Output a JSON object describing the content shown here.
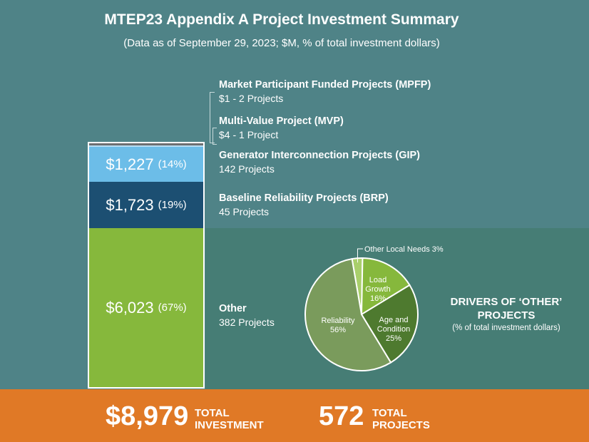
{
  "title": "MTEP23 Appendix A Project Investment Summary",
  "subtitle": "(Data as of September 29, 2023; $M, % of total investment dollars)",
  "chart_data": [
    {
      "type": "bar",
      "layout": "stacked",
      "unit": "$M",
      "segments": [
        {
          "key": "mpfp",
          "name": "Market Participant Funded Projects (MPFP)",
          "value_label": "$1",
          "value": 1,
          "projects": "$1 - 2 Projects",
          "color": "#b6ddf2"
        },
        {
          "key": "mvp",
          "name": "Multi-Value Project (MVP)",
          "value_label": "$4",
          "value": 4,
          "projects": "$4 - 1 Project",
          "color": "#6d6f71"
        },
        {
          "key": "gip",
          "name": "Generator Interconnection Projects (GIP)",
          "value_label": "$1,227",
          "value": 1227,
          "pct": "(14%)",
          "projects": "142 Projects",
          "color": "#6cbde8"
        },
        {
          "key": "brp",
          "name": "Baseline Reliability Projects (BRP)",
          "value_label": "$1,723",
          "value": 1723,
          "pct": "(19%)",
          "projects": "45 Projects",
          "color": "#1c4f72"
        },
        {
          "key": "other",
          "name": "Other",
          "value_label": "$6,023",
          "value": 6023,
          "pct": "(67%)",
          "projects": "382 Projects",
          "color": "#86b83c"
        }
      ]
    },
    {
      "type": "pie",
      "title": "DRIVERS OF ‘OTHER’ PROJECTS",
      "subtitle": "(% of total investment dollars)",
      "slices": [
        {
          "label": "Other Local Needs 3%",
          "lines": [
            "Other Local Needs 3%"
          ],
          "value": 3,
          "color": "#a9cf6b"
        },
        {
          "label": "Load Growth 16%",
          "lines": [
            "Load",
            "Growth",
            "16%"
          ],
          "value": 16,
          "color": "#86b83c"
        },
        {
          "label": "Age and Condition 25%",
          "lines": [
            "Age and",
            "Condition",
            "25%"
          ],
          "value": 25,
          "color": "#4e7a2f"
        },
        {
          "label": "Reliability 56%",
          "lines": [
            "Reliability",
            "56%"
          ],
          "value": 56,
          "color": "#7a9b5c"
        }
      ]
    }
  ],
  "footer": {
    "investment_value": "$8,979",
    "investment_label_1": "TOTAL",
    "investment_label_2": "INVESTMENT",
    "projects_value": "572",
    "projects_label_1": "TOTAL",
    "projects_label_2": "PROJECTS"
  }
}
